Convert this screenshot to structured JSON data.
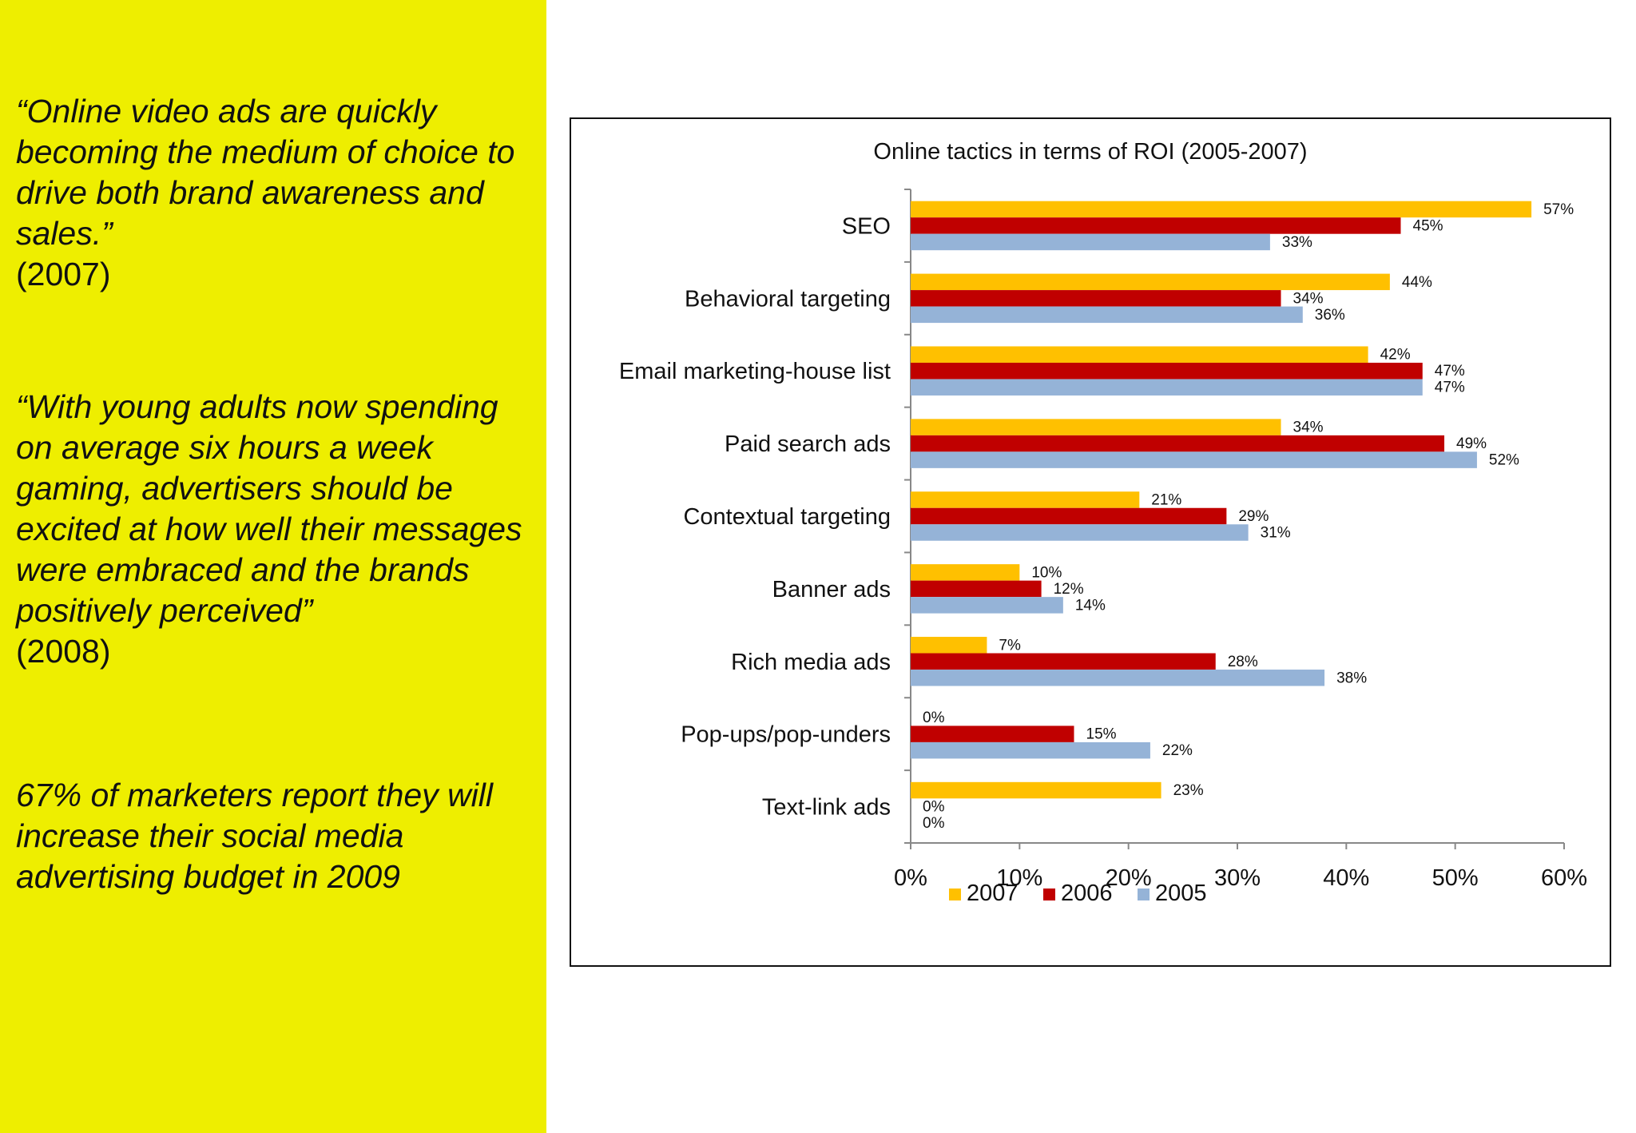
{
  "left_panel": {
    "quotes": [
      {
        "text": "“Online video ads are quickly becoming the medium of choice to drive both brand awareness and sales.”",
        "year": "(2007)"
      },
      {
        "text": "“With young adults now spending on average six hours a week gaming, advertisers should be excited at how well their messages were embraced and the brands positively perceived”",
        "year": "(2008)"
      },
      {
        "text": "67% of marketers report they will increase their social media advertising budget in 2009",
        "year": ""
      }
    ],
    "background_color": "#eeee00"
  },
  "chart_data": {
    "type": "bar",
    "orientation": "horizontal",
    "title": "Online tactics in terms of ROI (2005-2007)",
    "categories": [
      "SEO",
      "Behavioral targeting",
      "Email marketing-house list",
      "Paid search ads",
      "Contextual targeting",
      "Banner ads",
      "Rich media ads",
      "Pop-ups/pop-unders",
      "Text-link ads"
    ],
    "series": [
      {
        "name": "2007",
        "color": "#ffc000",
        "values": [
          57,
          44,
          42,
          34,
          21,
          10,
          7,
          0,
          23
        ],
        "labels": [
          "57%",
          "44%",
          "42%",
          "34%",
          "21%",
          "10%",
          "7%",
          "0%",
          "23%"
        ]
      },
      {
        "name": "2006",
        "color": "#c00000",
        "values": [
          45,
          34,
          47,
          49,
          29,
          12,
          28,
          15,
          0
        ],
        "labels": [
          "45%",
          "34%",
          "47%",
          "49%",
          "29%",
          "12%",
          "28%",
          "15%",
          "0%"
        ]
      },
      {
        "name": "2005",
        "color": "#95b3d7",
        "values": [
          33,
          36,
          47,
          52,
          31,
          14,
          38,
          22,
          0
        ],
        "labels": [
          "33%",
          "36%",
          "47%",
          "52%",
          "31%",
          "14%",
          "38%",
          "22%",
          "0%"
        ]
      }
    ],
    "xlim": [
      0,
      60
    ],
    "xticks": [
      0,
      10,
      20,
      30,
      40,
      50,
      60
    ],
    "xtick_labels": [
      "0%",
      "10%",
      "20%",
      "30%",
      "40%",
      "50%",
      "60%"
    ],
    "xlabel": "",
    "ylabel": "",
    "grid": false,
    "legend_position": "bottom"
  }
}
